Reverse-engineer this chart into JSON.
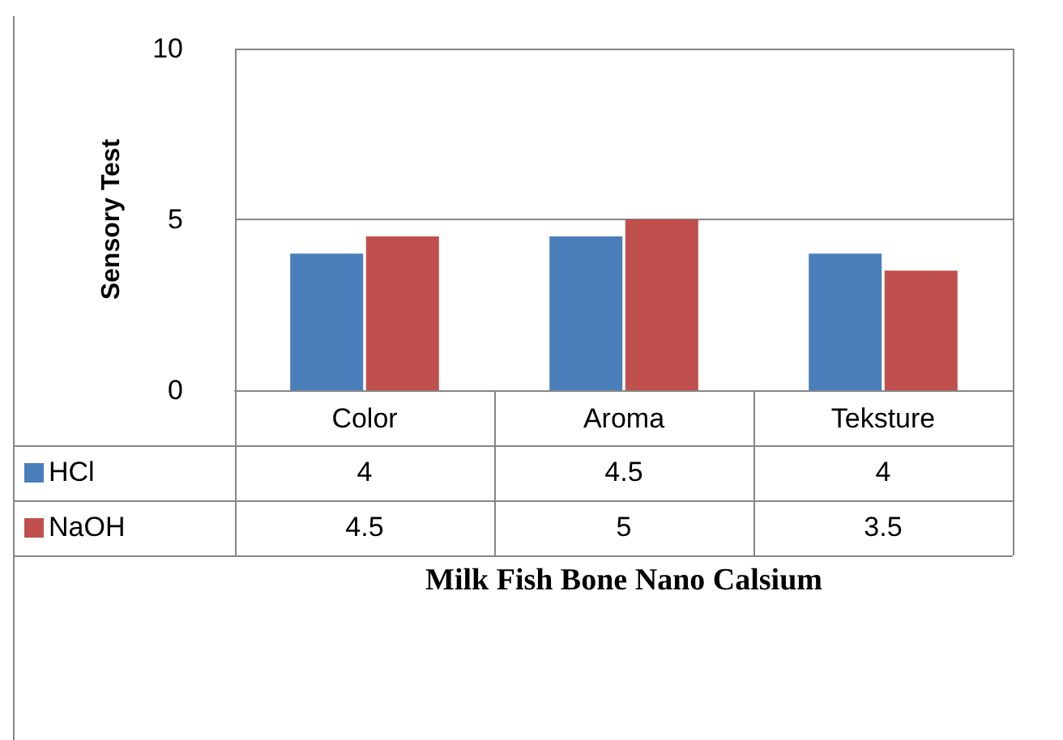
{
  "chart_data": {
    "type": "bar",
    "xlabel": "Milk Fish Bone Nano Calsium",
    "ylabel": "Sensory Test",
    "categories": [
      "Color",
      "Aroma",
      "Teksture"
    ],
    "series": [
      {
        "name": "HCl",
        "color": "#4a7ebb",
        "values": [
          4,
          4.5,
          4
        ]
      },
      {
        "name": "NaOH",
        "color": "#c0504d",
        "values": [
          4.5,
          5,
          3.5
        ]
      }
    ],
    "ylim": [
      0,
      10
    ],
    "yticks": [
      0,
      5,
      10
    ],
    "grid": "y",
    "legend": "bottom",
    "data_labels": true
  }
}
